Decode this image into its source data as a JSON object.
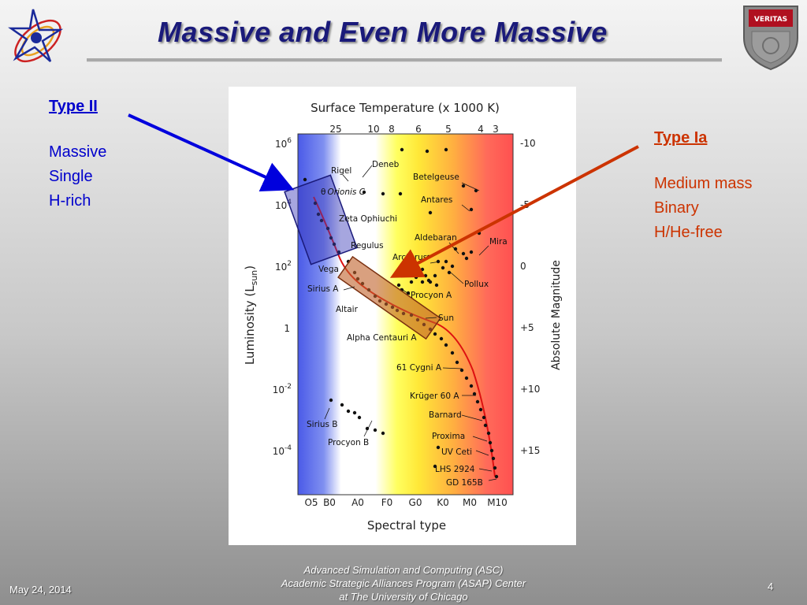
{
  "slide": {
    "title": "Massive and Even More Massive",
    "page_number": "4",
    "date": "May 24, 2014"
  },
  "type_ii": {
    "heading": "Type II",
    "lines": [
      "Massive",
      "Single",
      "H-rich"
    ],
    "color": "#0000cc"
  },
  "type_ia": {
    "heading": "Type Ia",
    "lines": [
      "Medium mass",
      "Binary",
      "H/He-free"
    ],
    "color": "#cc3300"
  },
  "footer": {
    "lines": [
      "Advanced Simulation and Computing (ASC)",
      "Academic Strategic Alliances Program (ASAP) Center",
      "at The University of Chicago"
    ]
  },
  "logo_right": {
    "text": "VERITAS"
  },
  "hr_diagram": {
    "top_title": "Surface Temperature (x 1000 K)",
    "top_ticks": [
      "25",
      "10",
      "8",
      "6",
      "5",
      "4",
      "3"
    ],
    "left_label": "Luminosity (L",
    "left_label_sub": "sun",
    "left_label_close": ")",
    "left_ticks": [
      {
        "base": "10",
        "sup": "6"
      },
      {
        "base": "10",
        "sup": "4"
      },
      {
        "base": "10",
        "sup": "2"
      },
      {
        "base": "1",
        "sup": ""
      },
      {
        "base": "10",
        "sup": "-2"
      },
      {
        "base": "10",
        "sup": "-4"
      }
    ],
    "right_label": "Absolute Magnitude",
    "right_ticks": [
      "-10",
      "-5",
      "0",
      "+5",
      "+10",
      "+15"
    ],
    "bottom_ticks": [
      "O5",
      "B0",
      "A0",
      "F0",
      "G0",
      "K0",
      "M0",
      "M10"
    ],
    "bottom_label": "Spectral type",
    "stars": [
      "Deneb",
      "Rigel",
      "Orionis C",
      "Betelgeuse",
      "Antares",
      "Zeta Ophiuchi",
      "Aldebaran",
      "Mira",
      "Regulus",
      "Arcturus",
      "Vega",
      "Pollux",
      "Sirius A",
      "Procyon A",
      "Altair",
      "Sun",
      "Alpha Centauri A",
      "61 Cygni A",
      "Krüger 60 A",
      "Barnard",
      "Sirius B",
      "Procyon B",
      "Proxima",
      "UV Ceti",
      "LHS 2924",
      "GD 165B"
    ],
    "orionis_prefix": "θ",
    "upper_box_color": "#3a3ab8",
    "main_box_color": "#c0602a",
    "main_sequence_color": "#dd1111"
  }
}
